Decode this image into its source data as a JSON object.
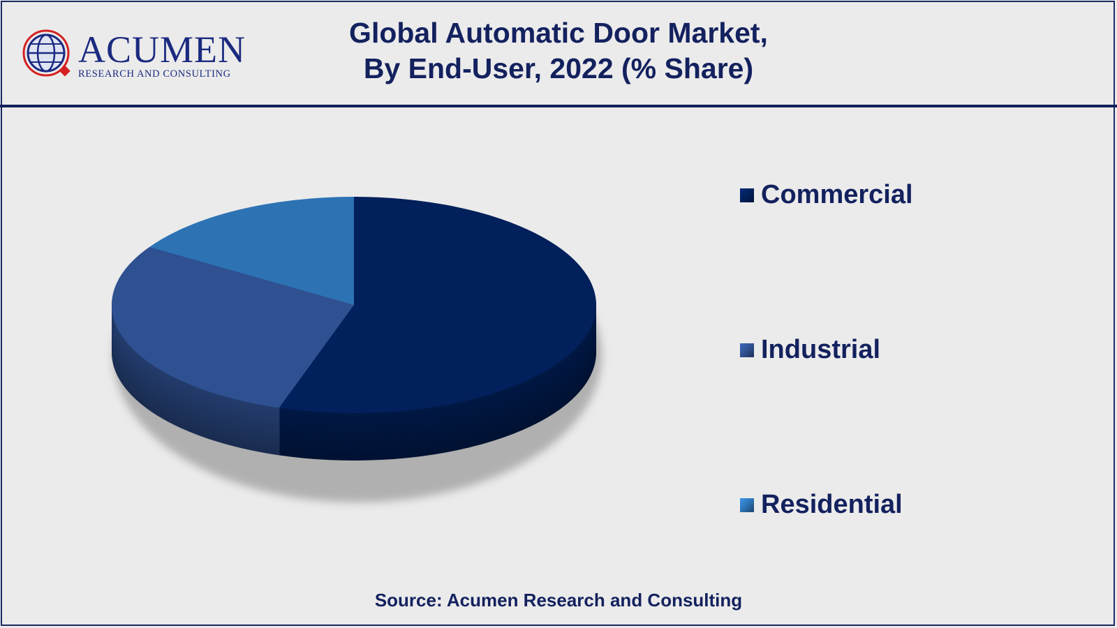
{
  "logo": {
    "name": "ACUMEN",
    "subtitle": "RESEARCH AND CONSULTING"
  },
  "chart_data": {
    "type": "pie",
    "title": "Global Automatic Door Market, By End-User, 2022 (% Share)",
    "title_lines": [
      "Global Automatic Door Market,",
      "By End-User, 2022 (% Share)"
    ],
    "categories": [
      "Commercial",
      "Industrial",
      "Residential"
    ],
    "values": [
      55,
      29,
      16
    ],
    "unit": "% share (estimated, no data labels shown)",
    "colors": [
      "#02205b",
      "#2f5091",
      "#2d73b4"
    ],
    "legend_position": "right",
    "source": "Source: Acumen Research and Consulting"
  }
}
